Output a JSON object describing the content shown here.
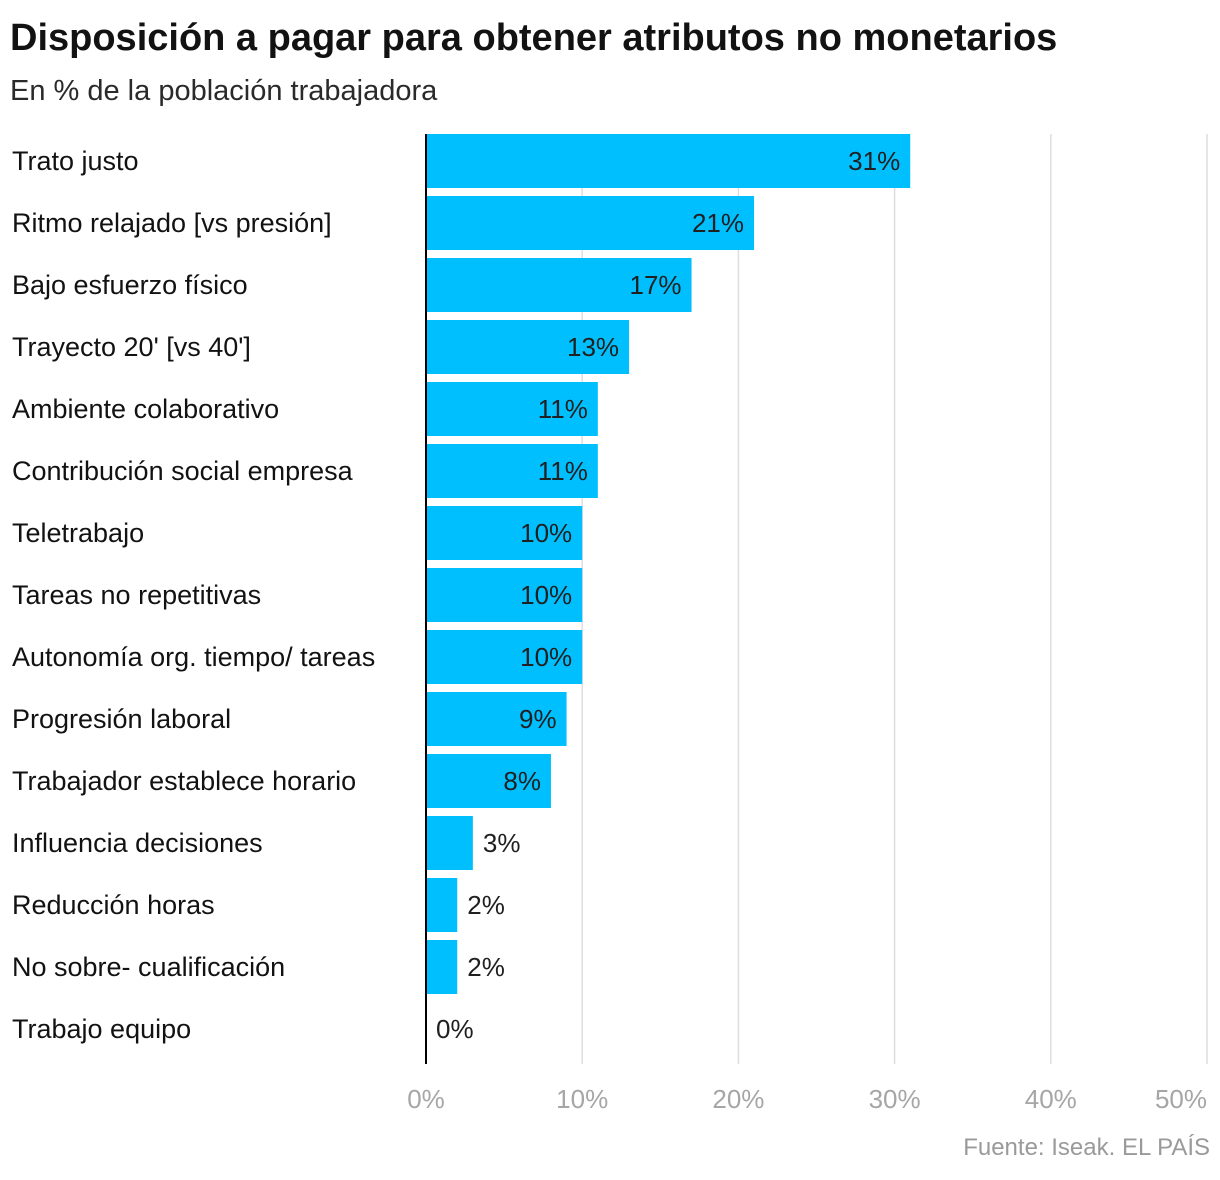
{
  "title": "Disposición a pagar para obtener atributos no monetarios",
  "subtitle": "En % de la población trabajadora",
  "source": "Fuente: Iseak. EL PAÍS",
  "colors": {
    "bar": "#00bfff",
    "grid": "#dedede",
    "axis": "#000000"
  },
  "chart_data": {
    "type": "bar",
    "orientation": "horizontal",
    "title": "Disposición a pagar para obtener atributos no monetarios",
    "subtitle": "En % de la población trabajadora",
    "categories": [
      "Trato justo",
      "Ritmo relajado [vs presión]",
      "Bajo esfuerzo físico",
      "Trayecto 20' [vs 40']",
      "Ambiente colaborativo",
      "Contribución social empresa",
      "Teletrabajo",
      "Tareas no repetitivas",
      "Autonomía org. tiempo/ tareas",
      "Progresión laboral",
      "Trabajador establece horario",
      "Influencia decisiones",
      "Reducción horas",
      "No sobre- cualificación",
      "Trabajo equipo"
    ],
    "values": [
      31,
      21,
      17,
      13,
      11,
      11,
      10,
      10,
      10,
      9,
      8,
      3,
      2,
      2,
      0
    ],
    "value_labels": [
      "31%",
      "21%",
      "17%",
      "13%",
      "11%",
      "11%",
      "10%",
      "10%",
      "10%",
      "9%",
      "8%",
      "3%",
      "2%",
      "2%",
      "0%"
    ],
    "xlim": [
      0,
      50
    ],
    "xticks": [
      0,
      10,
      20,
      30,
      40,
      50
    ],
    "xtick_labels": [
      "0%",
      "10%",
      "20%",
      "30%",
      "40%",
      "50%"
    ],
    "grid": true,
    "legend": "none"
  }
}
